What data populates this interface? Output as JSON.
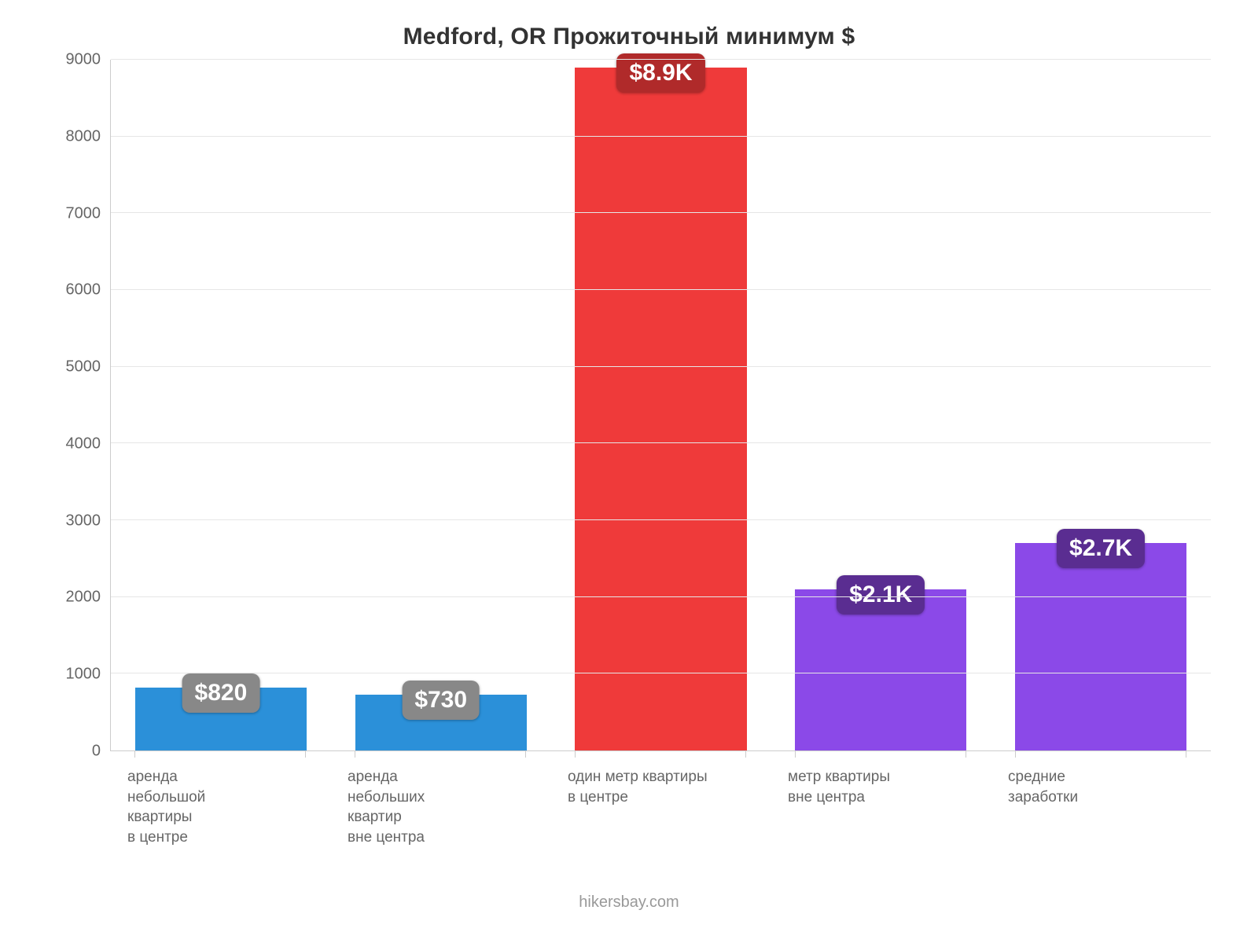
{
  "chart": {
    "type": "bar",
    "title": "Medford, OR Прожиточный минимум $",
    "title_fontsize": 30,
    "title_color": "#333333",
    "background_color": "#ffffff",
    "grid_color": "#e6e6e6",
    "axis_color": "#cccccc",
    "y": {
      "min": 0,
      "max": 9000,
      "step": 1000,
      "ticks": [
        "0",
        "1000",
        "2000",
        "3000",
        "4000",
        "5000",
        "6000",
        "7000",
        "8000",
        "9000"
      ],
      "label_fontsize": 20,
      "label_color": "#666666"
    },
    "x": {
      "label_fontsize": 19,
      "label_color": "#666666"
    },
    "bar_width_pct": 78,
    "bars": [
      {
        "category": "аренда\nнебольшой\nквартиры\nв центре",
        "value": 820,
        "display": "$820",
        "color": "#2b90d9",
        "badge_bg": "#888888"
      },
      {
        "category": "аренда\nнебольших\nквартир\nвне центра",
        "value": 730,
        "display": "$730",
        "color": "#2b90d9",
        "badge_bg": "#888888"
      },
      {
        "category": "один метр квартиры\nв центре",
        "value": 8900,
        "display": "$8.9K",
        "color": "#ef3a3a",
        "badge_bg": "#b02a2a"
      },
      {
        "category": "метр квартиры\nвне центра",
        "value": 2100,
        "display": "$2.1K",
        "color": "#8b49e8",
        "badge_bg": "#5a2d91"
      },
      {
        "category": "средние\nзаработки",
        "value": 2700,
        "display": "$2.7K",
        "color": "#8b49e8",
        "badge_bg": "#5a2d91"
      }
    ],
    "footer": "hikersbay.com",
    "footer_color": "#999999",
    "footer_fontsize": 20
  }
}
